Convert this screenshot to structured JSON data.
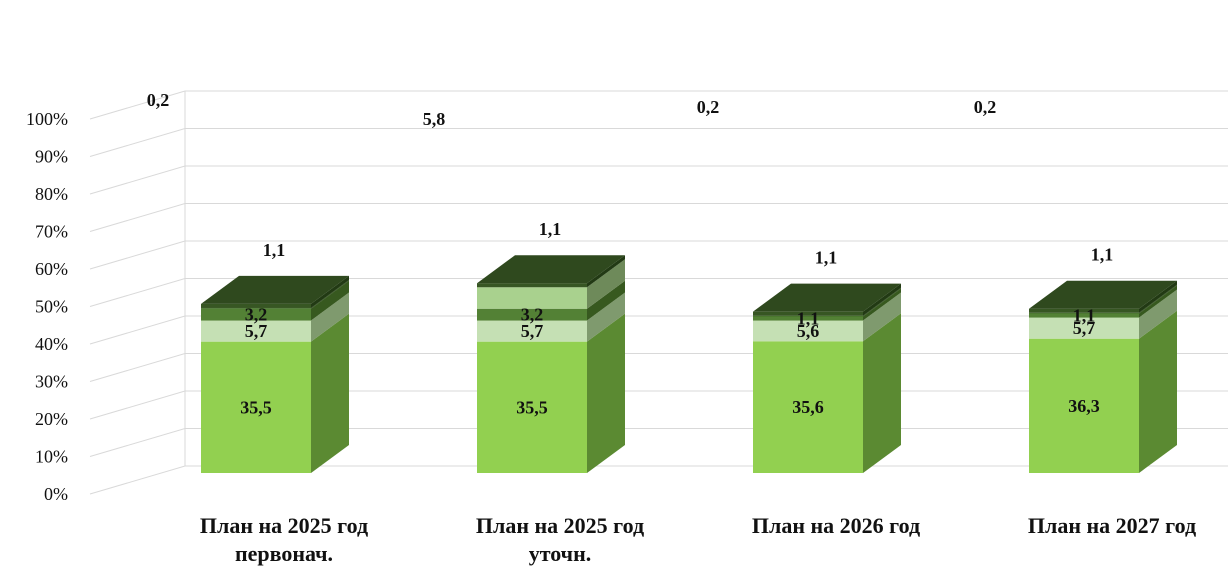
{
  "chart_data": {
    "type": "bar",
    "stacked": "percent",
    "three_d": true,
    "grid": true,
    "legend": "none",
    "y_ticks": [
      "0%",
      "10%",
      "20%",
      "30%",
      "40%",
      "50%",
      "60%",
      "70%",
      "80%",
      "90%",
      "100%"
    ],
    "ylim": [
      0,
      100
    ],
    "categories": [
      [
        "План на 2025 год",
        "первонач."
      ],
      [
        "План на 2025 год",
        "уточн."
      ],
      [
        "План на 2026 год"
      ],
      [
        "План на 2027 год"
      ]
    ],
    "series": [
      {
        "color": "#92d050",
        "side": "#5b8a32",
        "values": [
          35.5,
          35.5,
          35.6,
          36.3
        ],
        "labels": [
          "35,5",
          "35,5",
          "35,6",
          "36,3"
        ]
      },
      {
        "color": "#c5e0b4",
        "side": "#7f9a6e",
        "values": [
          5.7,
          5.7,
          5.6,
          5.7
        ],
        "labels": [
          "5,7",
          "5,7",
          "5,6",
          "5,7"
        ]
      },
      {
        "color": "#538135",
        "side": "#37591f",
        "values": [
          3.2,
          3.2,
          1.1,
          1.1
        ],
        "labels": [
          "3,2",
          "3,2",
          "1,1",
          "1,1"
        ]
      },
      {
        "color": "#a9d18e",
        "side": "#6e8a5a",
        "values": [
          0,
          5.8,
          0,
          0
        ],
        "labels": [
          "",
          "5,8",
          "",
          ""
        ]
      },
      {
        "color": "#3e6b24",
        "side": "#2a4a16",
        "values": [
          0.2,
          0,
          0.2,
          0.2
        ],
        "labels": [
          "0,2",
          "",
          "0,2",
          "0,2"
        ]
      },
      {
        "color": "#375623",
        "side": "#223a14",
        "values": [
          1.1,
          1.1,
          1.1,
          1.1
        ],
        "labels": [
          "1,1",
          "1,1",
          "1,1",
          "1,1"
        ]
      }
    ]
  }
}
